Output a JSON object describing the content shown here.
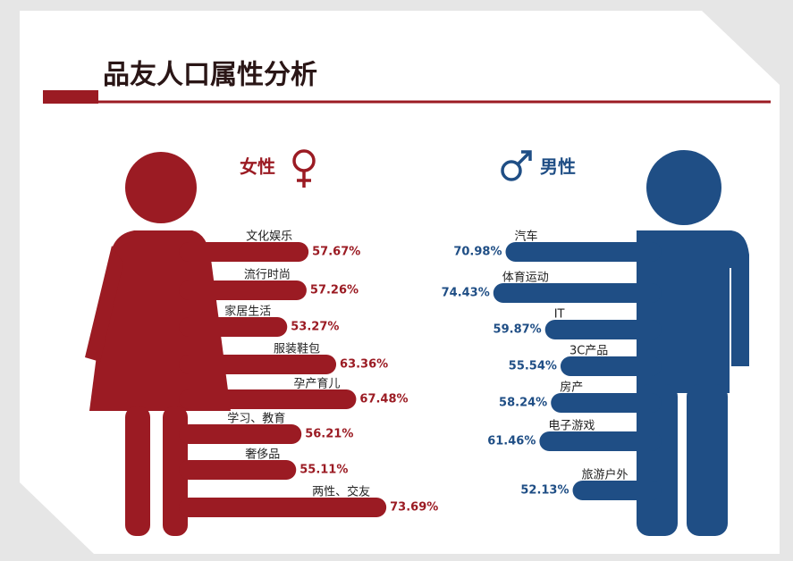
{
  "title": "品友人口属性分析",
  "chart_data": [
    {
      "type": "bar",
      "title": "女性",
      "color": "#9b1b23",
      "categories": [
        "文化娱乐",
        "流行时尚",
        "家居生活",
        "服装鞋包",
        "孕产育儿",
        "学习、教育",
        "奢侈品",
        "两性、交友"
      ],
      "values": [
        57.67,
        57.26,
        53.27,
        63.36,
        67.48,
        56.21,
        55.11,
        73.69
      ],
      "value_labels": [
        "57.67%",
        "57.26%",
        "53.27%",
        "63.36%",
        "67.48%",
        "56.21%",
        "55.11%",
        "73.69%"
      ]
    },
    {
      "type": "bar",
      "title": "男性",
      "color": "#1f4e85",
      "categories": [
        "汽车",
        "体育运动",
        "IT",
        "3C产品",
        "房产",
        "电子游戏",
        "旅游户外"
      ],
      "values": [
        70.98,
        74.43,
        59.87,
        55.54,
        58.24,
        61.46,
        52.13
      ],
      "value_labels": [
        "70.98%",
        "74.43%",
        "59.87%",
        "55.54%",
        "58.24%",
        "61.46%",
        "52.13%"
      ]
    }
  ]
}
